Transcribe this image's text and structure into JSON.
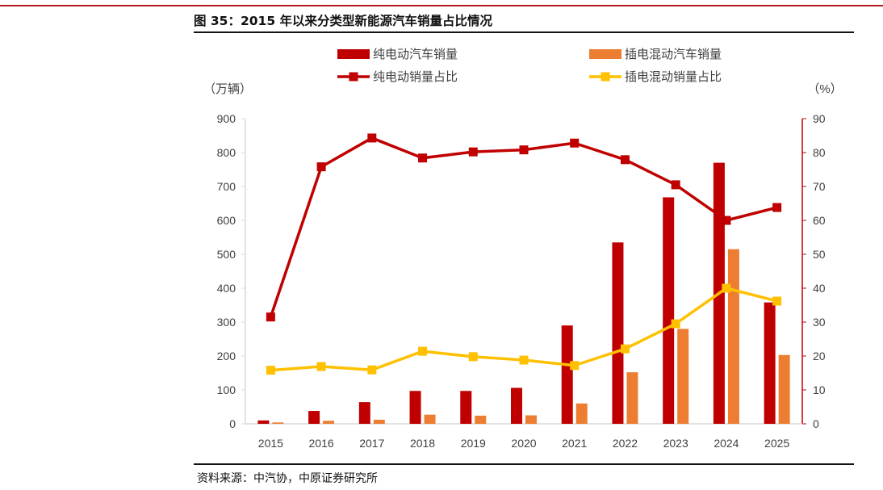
{
  "title": "图 35：2015 年以来分类型新能源汽车销量占比情况",
  "source": "资料来源：中汽协，中原证券研究所",
  "colors": {
    "bev_bar": "#c00000",
    "phev_bar": "#ed7d31",
    "bev_line": "#c00000",
    "phev_line": "#ffc000",
    "axis_right": "#c00000",
    "text": "#404040",
    "brand": "#b3191f"
  },
  "chart_data": {
    "type": "bar",
    "categories": [
      "2015",
      "2016",
      "2017",
      "2018",
      "2019",
      "2020",
      "2021",
      "2022",
      "2023",
      "2024",
      "2025"
    ],
    "left_axis": {
      "unit_label": "（万辆）",
      "ylim": [
        0,
        900
      ],
      "ticks": [
        0,
        100,
        200,
        300,
        400,
        500,
        600,
        700,
        800,
        900
      ]
    },
    "right_axis": {
      "unit_label": "（%）",
      "ylim": [
        0,
        90
      ],
      "ticks": [
        0,
        10,
        20,
        30,
        40,
        50,
        60,
        70,
        80,
        90
      ]
    },
    "grid": false,
    "legend_position": "top",
    "series": [
      {
        "name": "纯电动汽车销量",
        "kind": "bar",
        "axis": "left",
        "color": "#c00000",
        "values": [
          10,
          38,
          64,
          97,
          97,
          106,
          290,
          535,
          668,
          770,
          358
        ]
      },
      {
        "name": "插电混动汽车销量",
        "kind": "bar",
        "axis": "left",
        "color": "#ed7d31",
        "values": [
          4,
          9,
          12,
          27,
          24,
          25,
          60,
          152,
          280,
          515,
          203
        ]
      },
      {
        "name": "纯电动销量占比",
        "kind": "line",
        "axis": "right",
        "color": "#c00000",
        "marker": "square",
        "values": [
          31.5,
          75.8,
          84.3,
          78.4,
          80.2,
          80.8,
          82.8,
          77.9,
          70.5,
          60.0,
          63.8
        ]
      },
      {
        "name": "插电混动销量占比",
        "kind": "line",
        "axis": "right",
        "color": "#ffc000",
        "marker": "square",
        "values": [
          15.8,
          16.9,
          15.9,
          21.4,
          19.8,
          18.8,
          17.2,
          22.1,
          29.5,
          40.0,
          36.2
        ]
      }
    ]
  }
}
